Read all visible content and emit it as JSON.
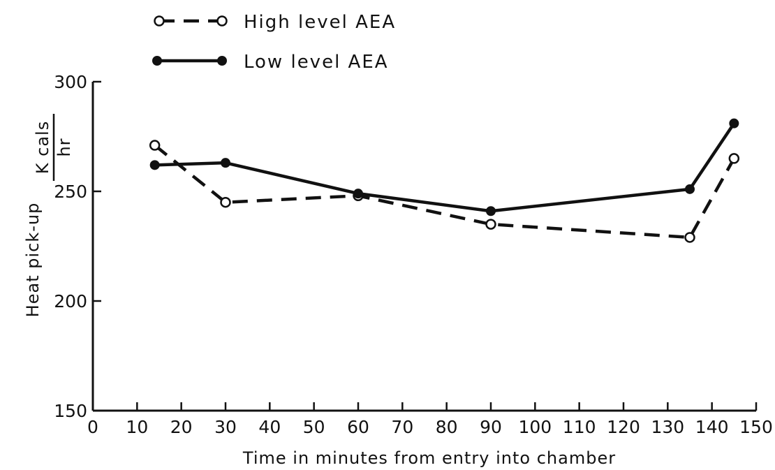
{
  "chart_data": {
    "type": "line",
    "title": "",
    "xlabel": "Time in minutes from entry into chamber",
    "ylabel": "Heat pick-up",
    "ylabel_unit_numerator": "K cals",
    "ylabel_unit_denominator": "hr",
    "xlim": [
      0,
      150
    ],
    "ylim": [
      150,
      300
    ],
    "xticks": [
      0,
      10,
      20,
      30,
      40,
      50,
      60,
      70,
      80,
      90,
      100,
      110,
      120,
      130,
      140,
      150
    ],
    "yticks": [
      150,
      200,
      250,
      300
    ],
    "grid": false,
    "legend_position": "top-left",
    "series": [
      {
        "name": "High level AEA",
        "line_style": "dashed",
        "marker": "open-circle",
        "x": [
          14,
          30,
          60,
          90,
          135,
          145
        ],
        "y": [
          271,
          245,
          248,
          235,
          229,
          265
        ]
      },
      {
        "name": "Low level AEA",
        "line_style": "solid",
        "marker": "filled-circle",
        "x": [
          14,
          30,
          60,
          90,
          135,
          145
        ],
        "y": [
          262,
          263,
          249,
          241,
          251,
          281
        ]
      }
    ]
  }
}
